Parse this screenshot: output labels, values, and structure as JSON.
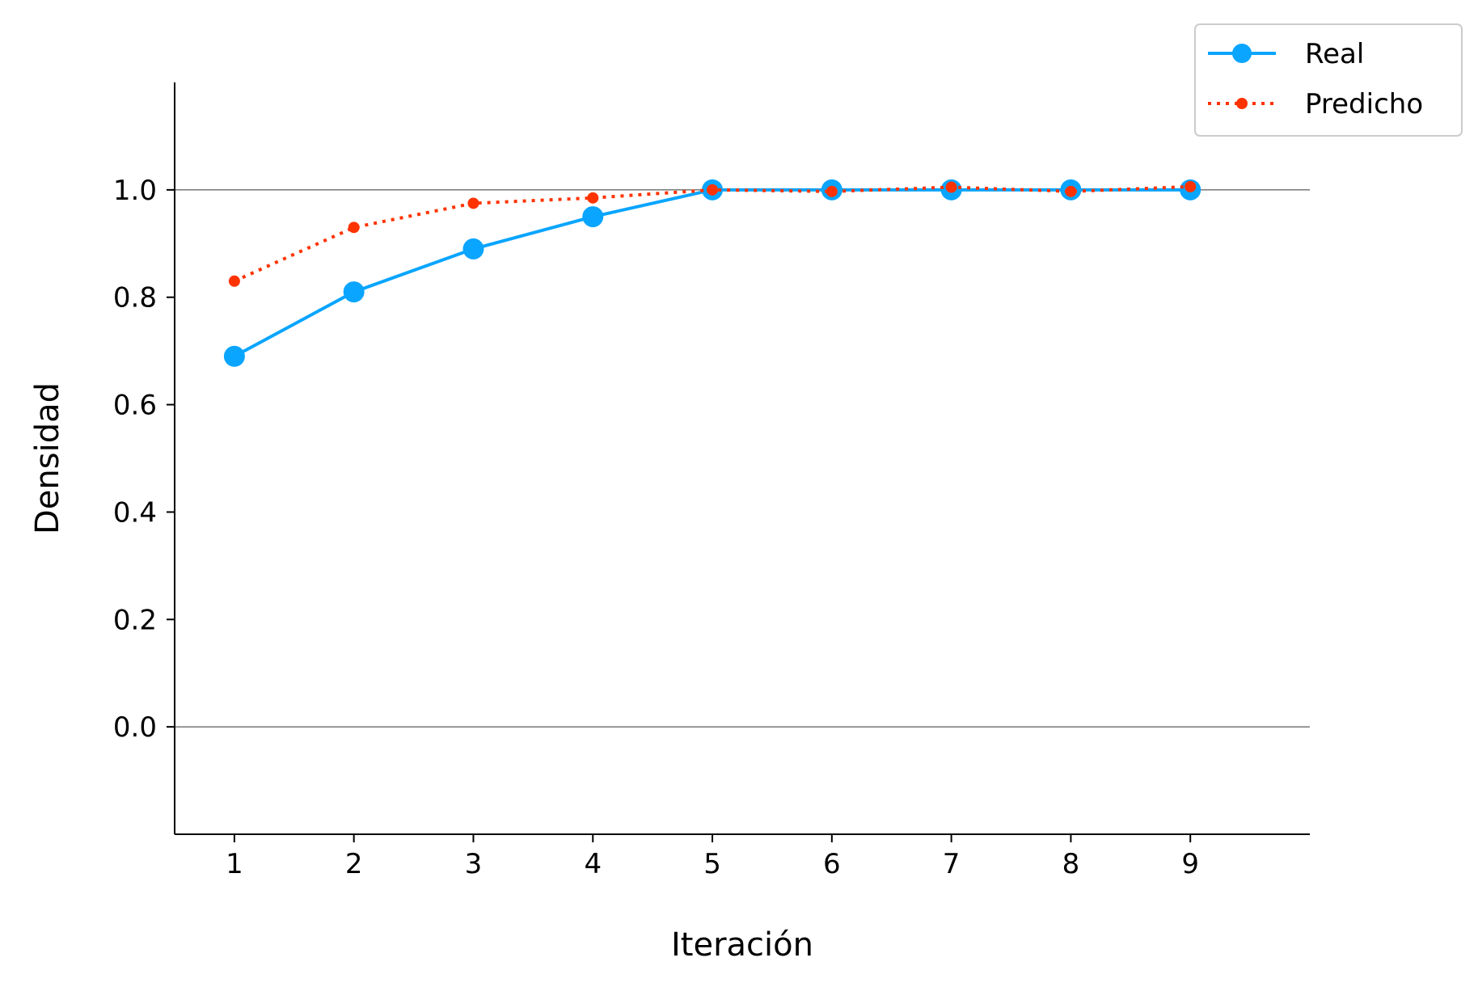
{
  "chart_data": {
    "type": "line",
    "xlabel": "Iteración",
    "ylabel": "Densidad",
    "x": [
      1,
      2,
      3,
      4,
      5,
      6,
      7,
      8,
      9
    ],
    "xlim": [
      0.5,
      10.0
    ],
    "ylim": [
      -0.2,
      1.2
    ],
    "xticks": [
      "1",
      "2",
      "3",
      "4",
      "5",
      "6",
      "7",
      "8",
      "9"
    ],
    "yticks": [
      "0.0",
      "0.2",
      "0.4",
      "0.6",
      "0.8",
      "1.0"
    ],
    "reference_lines": [
      0.0,
      1.0
    ],
    "grid": false,
    "legend_position": "top-right",
    "series": [
      {
        "name": "Real",
        "color": "#0aa5ff",
        "style": "solid",
        "values": [
          0.69,
          0.81,
          0.89,
          0.95,
          1.0,
          1.0,
          1.0,
          1.0,
          1.0
        ]
      },
      {
        "name": "Predicho",
        "color": "#ff3300",
        "style": "dotted",
        "values": [
          0.83,
          0.93,
          0.975,
          0.985,
          1.0,
          0.997,
          1.005,
          0.997,
          1.006
        ]
      }
    ]
  }
}
